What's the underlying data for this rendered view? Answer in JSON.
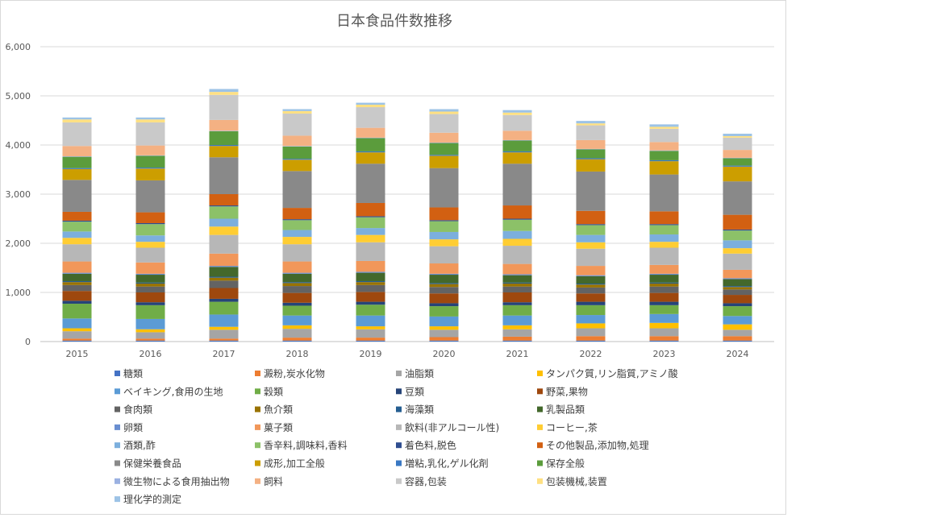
{
  "chart_data": {
    "type": "bar",
    "stacked": true,
    "title": "日本食品件数推移",
    "xlabel": "",
    "ylabel": "",
    "ylim": [
      0,
      6000
    ],
    "yticks": [
      "0",
      "1,000",
      "2,000",
      "3,000",
      "4,000",
      "5,000",
      "6,000"
    ],
    "grid": true,
    "legend_position": "bottom",
    "categories": [
      "2015",
      "2016",
      "2017",
      "2018",
      "2019",
      "2020",
      "2021",
      "2022",
      "2023",
      "2024"
    ],
    "series": [
      {
        "name": "糖類",
        "color": "#4472C4",
        "values": [
          20,
          20,
          20,
          20,
          20,
          20,
          20,
          20,
          20,
          20
        ]
      },
      {
        "name": "澱粉,炭水化物",
        "color": "#ED7D31",
        "values": [
          40,
          40,
          40,
          60,
          60,
          70,
          80,
          90,
          90,
          90
        ]
      },
      {
        "name": "油脂類",
        "color": "#A5A5A5",
        "values": [
          150,
          130,
          180,
          180,
          170,
          150,
          150,
          160,
          160,
          130
        ]
      },
      {
        "name": "タンパク質,リン脂質,アミノ酸",
        "color": "#FFC000",
        "values": [
          60,
          60,
          60,
          70,
          60,
          70,
          80,
          100,
          110,
          110
        ]
      },
      {
        "name": "ベイキング,食用の生地",
        "color": "#5B9BD5",
        "values": [
          200,
          210,
          250,
          200,
          220,
          200,
          200,
          170,
          180,
          170
        ]
      },
      {
        "name": "穀類",
        "color": "#70AD47",
        "values": [
          300,
          280,
          260,
          200,
          220,
          210,
          210,
          200,
          180,
          200
        ]
      },
      {
        "name": "豆類",
        "color": "#264478",
        "values": [
          60,
          60,
          60,
          60,
          60,
          60,
          60,
          70,
          70,
          60
        ]
      },
      {
        "name": "野菜,果物",
        "color": "#9E480E",
        "values": [
          200,
          200,
          220,
          200,
          200,
          200,
          200,
          170,
          180,
          170
        ]
      },
      {
        "name": "食肉類",
        "color": "#636363",
        "values": [
          120,
          120,
          150,
          140,
          140,
          130,
          120,
          120,
          130,
          110
        ]
      },
      {
        "name": "魚介類",
        "color": "#997300",
        "values": [
          60,
          60,
          60,
          60,
          60,
          60,
          60,
          60,
          60,
          50
        ]
      },
      {
        "name": "海藻類",
        "color": "#255E91",
        "values": [
          20,
          20,
          20,
          20,
          20,
          20,
          20,
          20,
          20,
          20
        ]
      },
      {
        "name": "乳製品類",
        "color": "#43682B",
        "values": [
          150,
          160,
          200,
          170,
          170,
          170,
          150,
          150,
          160,
          140
        ]
      },
      {
        "name": "卵類",
        "color": "#698ED0",
        "values": [
          20,
          20,
          20,
          20,
          20,
          20,
          20,
          20,
          20,
          20
        ]
      },
      {
        "name": "菓子類",
        "color": "#F1975A",
        "values": [
          230,
          230,
          250,
          230,
          220,
          210,
          210,
          190,
          180,
          170
        ]
      },
      {
        "name": "飲料(非アルコール性)",
        "color": "#B7B7B7",
        "values": [
          350,
          300,
          380,
          350,
          380,
          350,
          370,
          350,
          350,
          330
        ]
      },
      {
        "name": "コーヒー,茶",
        "color": "#FFCD33",
        "values": [
          130,
          120,
          170,
          150,
          150,
          140,
          140,
          130,
          120,
          110
        ]
      },
      {
        "name": "酒類,酢",
        "color": "#7CAFDD",
        "values": [
          130,
          130,
          160,
          140,
          140,
          150,
          160,
          150,
          150,
          160
        ]
      },
      {
        "name": "香辛料,調味料,香料",
        "color": "#8CC168",
        "values": [
          200,
          230,
          250,
          200,
          220,
          220,
          230,
          200,
          190,
          200
        ]
      },
      {
        "name": "着色料,脱色",
        "color": "#2F4D8F",
        "values": [
          20,
          20,
          20,
          20,
          20,
          20,
          20,
          20,
          20,
          20
        ]
      },
      {
        "name": "その他製品,添加物,処理",
        "color": "#D26012",
        "values": [
          180,
          220,
          230,
          230,
          270,
          260,
          270,
          270,
          260,
          300
        ]
      },
      {
        "name": "保健栄養食品",
        "color": "#898989",
        "values": [
          650,
          650,
          750,
          750,
          800,
          800,
          850,
          800,
          750,
          680
        ]
      },
      {
        "name": "成形,加工全般",
        "color": "#CC9E00",
        "values": [
          220,
          240,
          230,
          230,
          230,
          250,
          230,
          250,
          270,
          300
        ]
      },
      {
        "name": "増粘,乳化,ゲル化剤",
        "color": "#3A78C3",
        "values": [
          20,
          20,
          20,
          20,
          20,
          20,
          20,
          20,
          20,
          20
        ]
      },
      {
        "name": "保存全般",
        "color": "#5B9C3C",
        "values": [
          230,
          240,
          280,
          250,
          270,
          240,
          220,
          180,
          190,
          150
        ]
      },
      {
        "name": "微生物による食用抽出物",
        "color": "#9BB1E1",
        "values": [
          10,
          10,
          10,
          10,
          10,
          10,
          10,
          10,
          10,
          10
        ]
      },
      {
        "name": "飼料",
        "color": "#F4B183",
        "values": [
          210,
          200,
          220,
          210,
          200,
          200,
          190,
          180,
          170,
          160
        ]
      },
      {
        "name": "容器,包装",
        "color": "#C9C9C9",
        "values": [
          480,
          470,
          510,
          450,
          420,
          380,
          320,
          300,
          270,
          250
        ]
      },
      {
        "name": "包装機械,装置",
        "color": "#FFE082",
        "values": [
          60,
          60,
          60,
          50,
          50,
          50,
          50,
          40,
          40,
          30
        ]
      },
      {
        "name": "理化学的測定",
        "color": "#9DC3E6",
        "values": [
          40,
          40,
          60,
          40,
          40,
          50,
          50,
          50,
          50,
          50
        ]
      }
    ]
  }
}
